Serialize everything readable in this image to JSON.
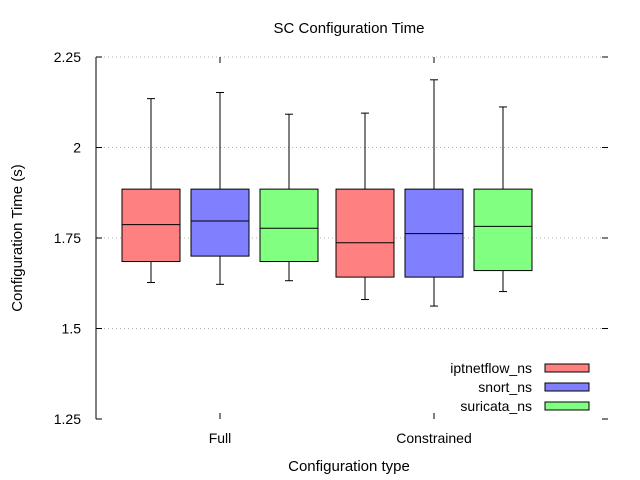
{
  "chart_data": {
    "type": "boxplot",
    "title": "SC Configuration Time",
    "xlabel": "Configuration type",
    "ylabel": "Configuration Time (s)",
    "ylim": [
      1.25,
      2.25
    ],
    "yticks": [
      1.25,
      1.5,
      1.75,
      2,
      2.25
    ],
    "ytick_labels": [
      "1.25",
      "1.5",
      "1.75",
      "2",
      "2.25"
    ],
    "grid": "horizontal dotted",
    "legend_position": "bottom-right",
    "categories": [
      "Full",
      "Constrained"
    ],
    "series": [
      {
        "name": "iptnetflow_ns",
        "color": "#ff8080",
        "boxes": [
          {
            "min": 1.627,
            "q1": 1.685,
            "median": 1.787,
            "q3": 1.885,
            "max": 2.135
          },
          {
            "min": 1.58,
            "q1": 1.642,
            "median": 1.737,
            "q3": 1.885,
            "max": 2.095
          }
        ]
      },
      {
        "name": "snort_ns",
        "color": "#8080ff",
        "boxes": [
          {
            "min": 1.622,
            "q1": 1.7,
            "median": 1.797,
            "q3": 1.885,
            "max": 2.152
          },
          {
            "min": 1.562,
            "q1": 1.642,
            "median": 1.762,
            "q3": 1.885,
            "max": 2.187
          }
        ]
      },
      {
        "name": "suricata_ns",
        "color": "#80ff80",
        "boxes": [
          {
            "min": 1.632,
            "q1": 1.685,
            "median": 1.777,
            "q3": 1.885,
            "max": 2.092
          },
          {
            "min": 1.602,
            "q1": 1.66,
            "median": 1.782,
            "q3": 1.885,
            "max": 2.112
          }
        ]
      }
    ]
  }
}
